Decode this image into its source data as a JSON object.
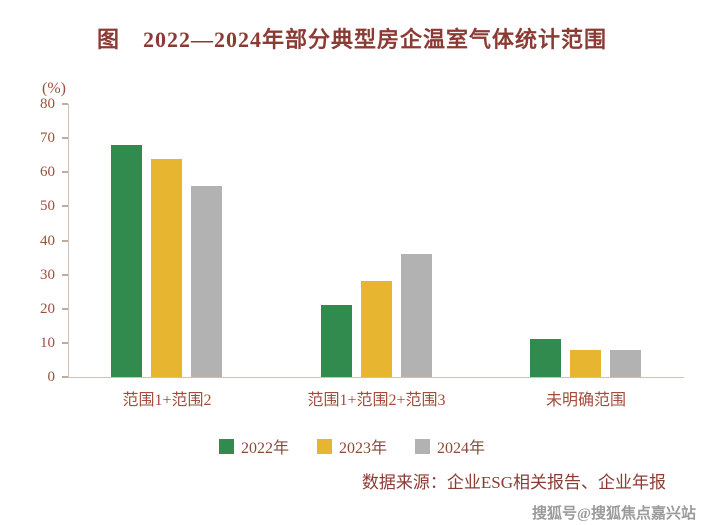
{
  "chart_data": {
    "type": "bar",
    "title": "图　2022—2024年部分典型房企温室气体统计范围",
    "categories": [
      "范围1+范围2",
      "范围1+范围2+范围3",
      "未明确范围"
    ],
    "series": [
      {
        "name": "2022年",
        "color": "#318a4e",
        "values": [
          68,
          21,
          11
        ]
      },
      {
        "name": "2023年",
        "color": "#e8b531",
        "values": [
          64,
          28,
          8
        ]
      },
      {
        "name": "2024年",
        "color": "#b2b2b2",
        "values": [
          56,
          36,
          8
        ]
      }
    ],
    "ylabel": "(%)",
    "ylim": [
      0,
      80
    ],
    "yticks": [
      0,
      10,
      20,
      30,
      40,
      50,
      60,
      70,
      80
    ],
    "grid": false,
    "legend_position": "bottom",
    "text_color": "#a14d3c",
    "title_color": "#8c3b34"
  },
  "source": "数据来源：企业ESG相关报告、企业年报",
  "watermark": "搜狐号@搜狐焦点嘉兴站"
}
